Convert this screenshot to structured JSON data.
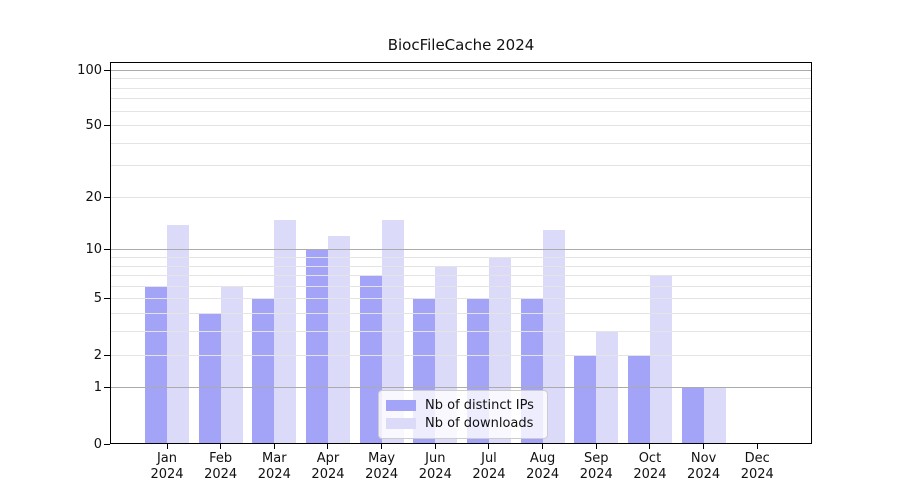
{
  "title": "BiocFileCache 2024",
  "chart_data": {
    "type": "bar",
    "title": "BiocFileCache 2024",
    "yscale": "log1p",
    "ylim": [
      0,
      111
    ],
    "yticks": [
      0,
      1,
      2,
      5,
      10,
      20,
      50,
      100
    ],
    "ytick_labels": [
      "0",
      "1",
      "2",
      "5",
      "10",
      "20",
      "50",
      "100"
    ],
    "major_gridlines": [
      1,
      10,
      100
    ],
    "minor_gridlines": [
      2,
      3,
      4,
      5,
      6,
      7,
      8,
      9,
      20,
      30,
      40,
      50,
      60,
      70,
      80,
      90
    ],
    "grid": true,
    "categories": [
      "Jan",
      "Feb",
      "Mar",
      "Apr",
      "May",
      "Jun",
      "Jul",
      "Aug",
      "Sep",
      "Oct",
      "Nov",
      "Dec"
    ],
    "year_label": "2024",
    "series": [
      {
        "name": "Nb of distinct IPs",
        "color": "#a3a3f7",
        "values": [
          6,
          4,
          5,
          10,
          7,
          5,
          5,
          5,
          2,
          2,
          1,
          0
        ]
      },
      {
        "name": "Nb of downloads",
        "color": "#dbdbf9",
        "values": [
          14,
          6,
          15,
          12,
          15,
          8,
          9,
          13,
          3,
          7,
          1,
          0
        ]
      }
    ],
    "legend_position": "lower center"
  },
  "colors": {
    "background": "#ffffff",
    "spine": "#000000",
    "major_grid": "#ababab",
    "minor_grid": "#e4e4e4"
  }
}
